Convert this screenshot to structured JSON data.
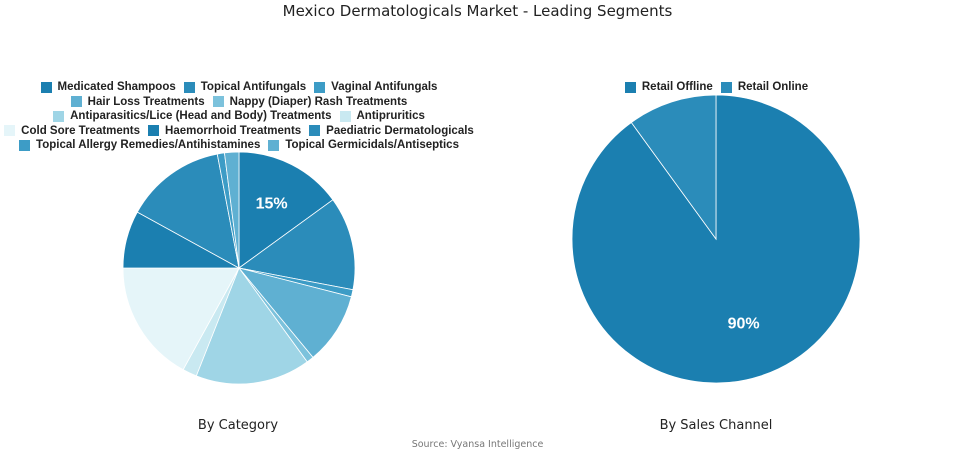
{
  "page": {
    "title": "Mexico Dermatologicals Market - Leading Segments",
    "source": "Source: Vyansa Intelligence"
  },
  "chart_data": [
    {
      "type": "pie",
      "title": "By Category",
      "legend_position": "top",
      "slices": [
        {
          "label": "Medicated Shampoos",
          "value": 15,
          "color": "#1b7fb0",
          "show_label": true
        },
        {
          "label": "Topical Antifungals",
          "value": 13,
          "color": "#2b8cba",
          "show_label": false
        },
        {
          "label": "Vaginal Antifungals",
          "value": 1,
          "color": "#3d9cc6",
          "show_label": false
        },
        {
          "label": "Hair Loss Treatments",
          "value": 10,
          "color": "#5fb0d2",
          "show_label": false
        },
        {
          "label": "Nappy (Diaper) Rash Treatments",
          "value": 1,
          "color": "#7cc2dc",
          "show_label": false
        },
        {
          "label": "Antiparasitics/Lice (Head and Body) Treatments",
          "value": 16,
          "color": "#9fd5e6",
          "show_label": false
        },
        {
          "label": "Antipruritics",
          "value": 2,
          "color": "#c9e9f1",
          "show_label": false
        },
        {
          "label": "Cold Sore Treatments",
          "value": 17,
          "color": "#e5f5f9",
          "show_label": false
        },
        {
          "label": "Haemorrhoid Treatments",
          "value": 8,
          "color": "#1b7fb0",
          "show_label": false
        },
        {
          "label": "Paediatric Dermatologicals",
          "value": 14,
          "color": "#2b8cba",
          "show_label": false
        },
        {
          "label": "Topical Allergy Remedies/Antihistamines",
          "value": 1,
          "color": "#3d9cc6",
          "show_label": false
        },
        {
          "label": "Topical Germicidals/Antiseptics",
          "value": 2,
          "color": "#5fb0d2",
          "show_label": false
        }
      ]
    },
    {
      "type": "pie",
      "title": "By Sales Channel",
      "legend_position": "top",
      "slices": [
        {
          "label": "Retail Offline",
          "value": 90,
          "color": "#1b7fb0",
          "show_label": true
        },
        {
          "label": "Retail Online",
          "value": 10,
          "color": "#2b8cba",
          "show_label": false
        }
      ]
    }
  ]
}
